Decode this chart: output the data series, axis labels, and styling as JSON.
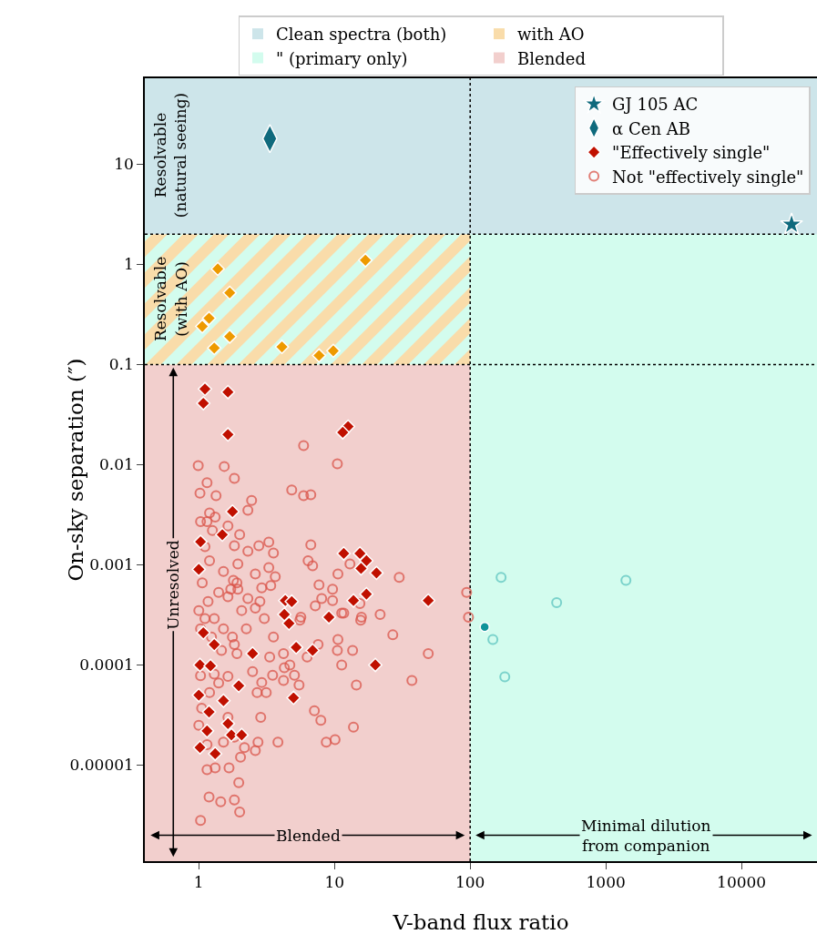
{
  "chart_data": {
    "type": "scatter",
    "xlabel": "V-band flux ratio",
    "ylabel": "On-sky separation (″)",
    "xlim": [
      0.4,
      36000
    ],
    "xticks": [
      1,
      10,
      100,
      1000,
      10000
    ],
    "ylim": [
      1.1e-06,
      72
    ],
    "yticks": [
      {
        "value": 1e-05,
        "label": "0.00001"
      },
      {
        "value": 0.0001,
        "label": "0.0001"
      },
      0.001,
      0.01,
      0.1,
      1,
      10
    ],
    "grid": false,
    "legend": "top right",
    "log": "xy",
    "series": [
      {
        "name": "GJ 105 AC",
        "marker": "star",
        "color": "#0f6a7d",
        "x": [
          23400
        ],
        "values": [
          2.5
        ]
      },
      {
        "name": "α Cen AB",
        "marker": "diamond",
        "color": "#0f6a7d",
        "x": [
          3.34
        ],
        "values": [
          18
        ]
      },
      {
        "name": "\"Effectively single\"",
        "marker": "diamond",
        "color": "#c01000",
        "x": [
          1.11,
          1.64,
          1.08,
          1.64,
          12.6,
          11.5,
          1.77,
          1.49,
          1.03,
          1.0,
          11.7,
          15.4,
          17.2,
          15.7,
          20.4,
          4.34,
          4.84,
          49.1,
          4.27,
          17.2,
          13.8,
          9.1,
          4.62,
          1.08,
          1.3,
          2.49,
          5.22,
          6.9,
          1.02,
          1.22,
          20.0,
          1.97,
          1.0,
          1.52,
          4.99,
          1.19,
          1.64,
          1.15,
          1.74,
          2.07,
          1.02,
          1.32
        ],
        "values": [
          0.057,
          0.053,
          0.041,
          0.02,
          0.024,
          0.021,
          0.0034,
          0.002,
          0.0017,
          0.0009,
          0.0013,
          0.0013,
          0.0011,
          0.00092,
          0.00083,
          0.00044,
          0.00043,
          0.00044,
          0.00032,
          0.00051,
          0.00044,
          0.0003,
          0.00026,
          0.00021,
          0.00016,
          0.00013,
          0.00015,
          0.00014,
          0.0001,
          9.8e-05,
          0.0001,
          6.2e-05,
          5e-05,
          4.4e-05,
          4.7e-05,
          3.4e-05,
          2.6e-05,
          2.2e-05,
          2e-05,
          2e-05,
          1.5e-05,
          1.3e-05
        ]
      },
      {
        "name": "Not \"effectively single\"",
        "marker": "circle-open",
        "color": "#d9544a",
        "x": [
          5.92,
          10.5,
          0.99,
          1.54,
          1.83,
          1.15,
          1.02,
          1.34,
          4.84,
          5.92,
          6.69,
          2.45,
          2.3,
          1.2,
          1.32,
          1.03,
          1.15,
          1.64,
          1.26,
          2.0,
          1.83,
          2.3,
          2.77,
          3.28,
          3.55,
          6.69,
          6.39,
          6.9,
          10.6,
          13.0,
          30.0,
          94.2,
          97.2,
          1.94,
          1.52,
          2.61,
          3.28,
          3.66,
          2.91,
          3.39,
          1.8,
          1.94,
          7.69,
          9.68,
          1.72,
          2.3,
          2.61,
          7.22,
          8.05,
          9.68,
          15.4,
          21.7,
          5.65,
          11.7,
          15.8,
          1.11,
          1.2,
          1.06,
          1.4,
          1.17,
          1.0,
          1.64,
          1.3,
          1.52,
          1.91,
          2.07,
          1.03,
          1.24,
          1.77,
          2.24,
          2.82,
          3.04,
          3.55,
          5.56,
          15.6,
          11.3,
          26.9,
          7.57,
          10.6,
          10.5,
          13.6,
          11.3,
          49.1,
          6.29,
          4.21,
          3.33,
          4.69,
          4.27,
          3.5,
          5.07,
          5.48,
          4.21,
          2.91,
          3.14,
          2.69,
          2.49,
          14.5,
          37.2,
          7.11,
          7.93,
          13.8,
          10.1,
          8.7,
          3.83,
          2.86,
          2.73,
          2.61,
          2.17,
          2.03,
          1.67,
          1.32,
          1.15,
          1.97,
          1.19,
          1.45,
          1.83,
          2.0,
          1.03,
          1.05,
          1.2,
          1.4,
          1.3,
          1.64,
          1.83,
          1.52,
          1.15,
          1.0,
          1.03,
          1.64,
          1.91,
          1.83,
          1.47,
          1.11
        ],
        "values": [
          0.0155,
          0.0102,
          0.0098,
          0.0096,
          0.0073,
          0.0066,
          0.0052,
          0.0049,
          0.0056,
          0.0049,
          0.005,
          0.0044,
          0.0035,
          0.0033,
          0.003,
          0.0027,
          0.0027,
          0.00245,
          0.0022,
          0.002,
          0.00155,
          0.00137,
          0.00155,
          0.00169,
          0.00131,
          0.00158,
          0.0011,
          0.00098,
          0.00081,
          0.00102,
          0.00075,
          0.00053,
          0.0003,
          0.00102,
          0.00086,
          0.00081,
          0.00094,
          0.00076,
          0.00059,
          0.00062,
          0.0007,
          0.00057,
          0.00063,
          0.00057,
          0.00057,
          0.00046,
          0.00037,
          0.00039,
          0.00046,
          0.00044,
          0.00041,
          0.00032,
          0.0003,
          0.00033,
          0.0003,
          0.00152,
          0.0011,
          0.00066,
          0.00053,
          0.00043,
          0.00035,
          0.00048,
          0.00029,
          0.00023,
          0.00066,
          0.00035,
          0.00023,
          0.00019,
          0.00019,
          0.00023,
          0.00043,
          0.00029,
          0.00019,
          0.00028,
          0.00028,
          0.00033,
          0.0002,
          0.00016,
          0.00018,
          0.00014,
          0.00014,
          0.0001,
          0.00013,
          0.00012,
          0.00013,
          0.00012,
          0.0001,
          9.4e-05,
          7.9e-05,
          7.9e-05,
          6.3e-05,
          7e-05,
          6.7e-05,
          5.3e-05,
          5.3e-05,
          8.6e-05,
          6.3e-05,
          7e-05,
          3.5e-05,
          2.8e-05,
          2.4e-05,
          1.8e-05,
          1.7e-05,
          1.7e-05,
          3e-05,
          1.7e-05,
          1.4e-05,
          1.5e-05,
          1.2e-05,
          9.4e-06,
          9.4e-06,
          9e-06,
          6.7e-06,
          4.8e-06,
          4.3e-06,
          4.5e-06,
          3.4e-06,
          2.8e-06,
          3.7e-05,
          5.3e-05,
          6.6e-05,
          8.1e-05,
          3e-05,
          1.9e-05,
          1.7e-05,
          1.6e-05,
          2.5e-05,
          7.8e-05,
          7.7e-05,
          0.00013,
          0.00016,
          0.00014,
          0.00029
        ]
      },
      {
        "marker": "diamond",
        "color": "#ee9a00",
        "x": [
          1.38,
          1.69,
          1.06,
          1.19,
          1.69,
          1.3,
          4.1,
          16.9,
          7.7,
          9.8
        ],
        "values": [
          0.9,
          0.52,
          0.24,
          0.29,
          0.19,
          0.146,
          0.15,
          1.1,
          0.123,
          0.137
        ]
      },
      {
        "marker": "circle",
        "color": "#10939a",
        "x": [
          128
        ],
        "values": [
          0.00024
        ]
      },
      {
        "marker": "circle-open",
        "color": "#5cc4bf",
        "x": [
          169,
          434,
          1406,
          147,
          180
        ],
        "values": [
          0.00075,
          0.00042,
          0.0007,
          0.00018,
          7.6e-05
        ]
      }
    ],
    "bands": [
      {
        "axis": "y",
        "from": 2,
        "to": 72,
        "label": "Clean spectra (both)",
        "color": "#cde5ea"
      },
      {
        "axis": "x",
        "from": 100,
        "to": 36000,
        "label": "\" (primary only)",
        "color": "#d3fcee"
      },
      {
        "axis": "y",
        "from": 0.1,
        "to": 2,
        "label": "with AO",
        "color": "#f9dcaa"
      },
      {
        "axis": "y",
        "from": 1.1e-06,
        "to": 0.1,
        "label": "Blended",
        "color": "#f2cfcd"
      }
    ],
    "ref_lines": [
      {
        "axis": "y",
        "value": 2,
        "color": "#000000",
        "line_style": "dotted"
      },
      {
        "axis": "y",
        "value": 0.1,
        "color": "#000000",
        "line_style": "dotted"
      },
      {
        "axis": "x",
        "value": 100,
        "color": "#000000",
        "line_style": "dotted"
      }
    ],
    "annotations": [
      "Resolvable\n(natural seeing)",
      "Resolvable\n(with AO)",
      "Unresolved",
      "Blended",
      "Minimal dilution\nfrom companion"
    ]
  }
}
